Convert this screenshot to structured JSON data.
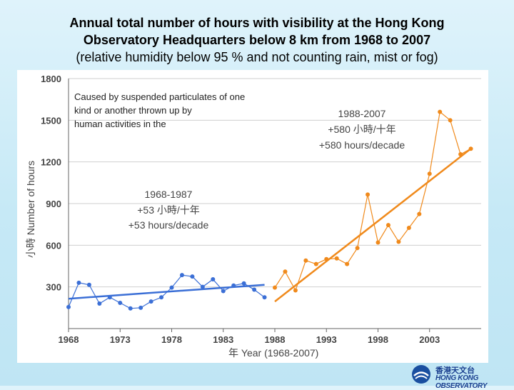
{
  "title_line1": "Annual total number of hours with visibility at the Hong Kong",
  "title_line2": "Observatory Headquarters below 8 km from 1968 to 2007",
  "subtitle": "(relative humidity below 95 % and not counting rain, mist or fog)",
  "logo": {
    "zh": "香港天文台",
    "en": "HONG KONG OBSERVATORY"
  },
  "chart_data": {
    "type": "line",
    "xlabel": "年 Year (1968-2007)",
    "ylabel": "小時 Number of hours",
    "xlim": [
      1968,
      2008
    ],
    "ylim": [
      0,
      1800
    ],
    "x_ticks": [
      1968,
      1973,
      1978,
      1983,
      1988,
      1993,
      1998,
      2003
    ],
    "y_ticks": [
      300,
      600,
      900,
      1200,
      1500,
      1800
    ],
    "grid": "horizontal",
    "series": [
      {
        "name": "1968-1987",
        "color": "#3b6fd6",
        "x": [
          1968,
          1969,
          1970,
          1971,
          1972,
          1973,
          1974,
          1975,
          1976,
          1977,
          1978,
          1979,
          1980,
          1981,
          1982,
          1983,
          1984,
          1985,
          1986,
          1987
        ],
        "values": [
          155,
          330,
          315,
          180,
          225,
          185,
          145,
          150,
          195,
          225,
          295,
          385,
          375,
          300,
          355,
          270,
          310,
          325,
          280,
          225
        ]
      },
      {
        "name": "1988-2007",
        "color": "#f08a1c",
        "x": [
          1988,
          1989,
          1990,
          1991,
          1992,
          1993,
          1994,
          1995,
          1996,
          1997,
          1998,
          1999,
          2000,
          2001,
          2002,
          2003,
          2004,
          2005,
          2006,
          2007
        ],
        "values": [
          295,
          410,
          275,
          490,
          465,
          500,
          505,
          465,
          580,
          965,
          620,
          745,
          625,
          725,
          825,
          1115,
          1560,
          1500,
          1255,
          1295
        ]
      }
    ],
    "trends": [
      {
        "series": "1968-1987",
        "x": [
          1968,
          1987
        ],
        "y": [
          215,
          315
        ]
      },
      {
        "series": "1988-2007",
        "x": [
          1988,
          2007
        ],
        "y": [
          195,
          1295
        ]
      }
    ],
    "annotations": {
      "note": "Caused by suspended particulates of one kind or another thrown up by human activities in the city",
      "trend1": [
        "1968-1987",
        "+53 小時/十年",
        "+53 hours/decade"
      ],
      "trend2": [
        "1988-2007",
        "+580 小時/十年",
        "+580 hours/decade"
      ]
    }
  }
}
